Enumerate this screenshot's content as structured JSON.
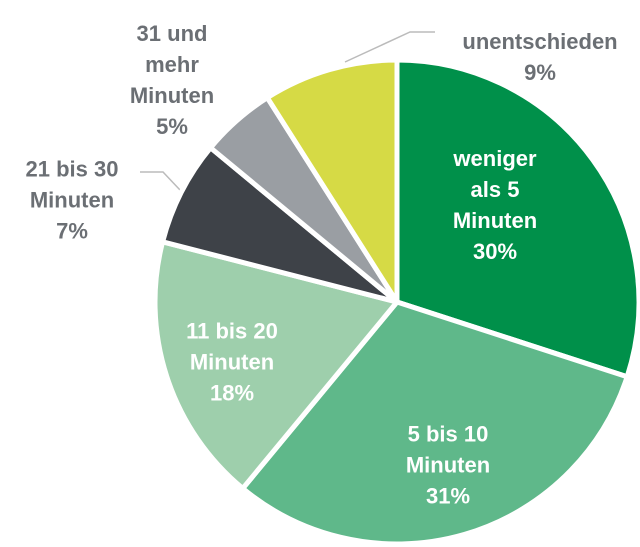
{
  "chart_data": {
    "type": "pie",
    "categories": [
      "weniger als 5 Minuten",
      "5 bis 10 Minuten",
      "11 bis 20 Minuten",
      "21 bis 30 Minuten",
      "31 und mehr Minuten",
      "unentschieden"
    ],
    "values": [
      30,
      31,
      18,
      7,
      5,
      9
    ],
    "value_labels": [
      "30%",
      "31%",
      "18%",
      "7%",
      "5%",
      "9%"
    ],
    "colors": [
      "#00904a",
      "#5fb88a",
      "#9ecfac",
      "#3e4248",
      "#9a9ea3",
      "#d6da45"
    ]
  }
}
